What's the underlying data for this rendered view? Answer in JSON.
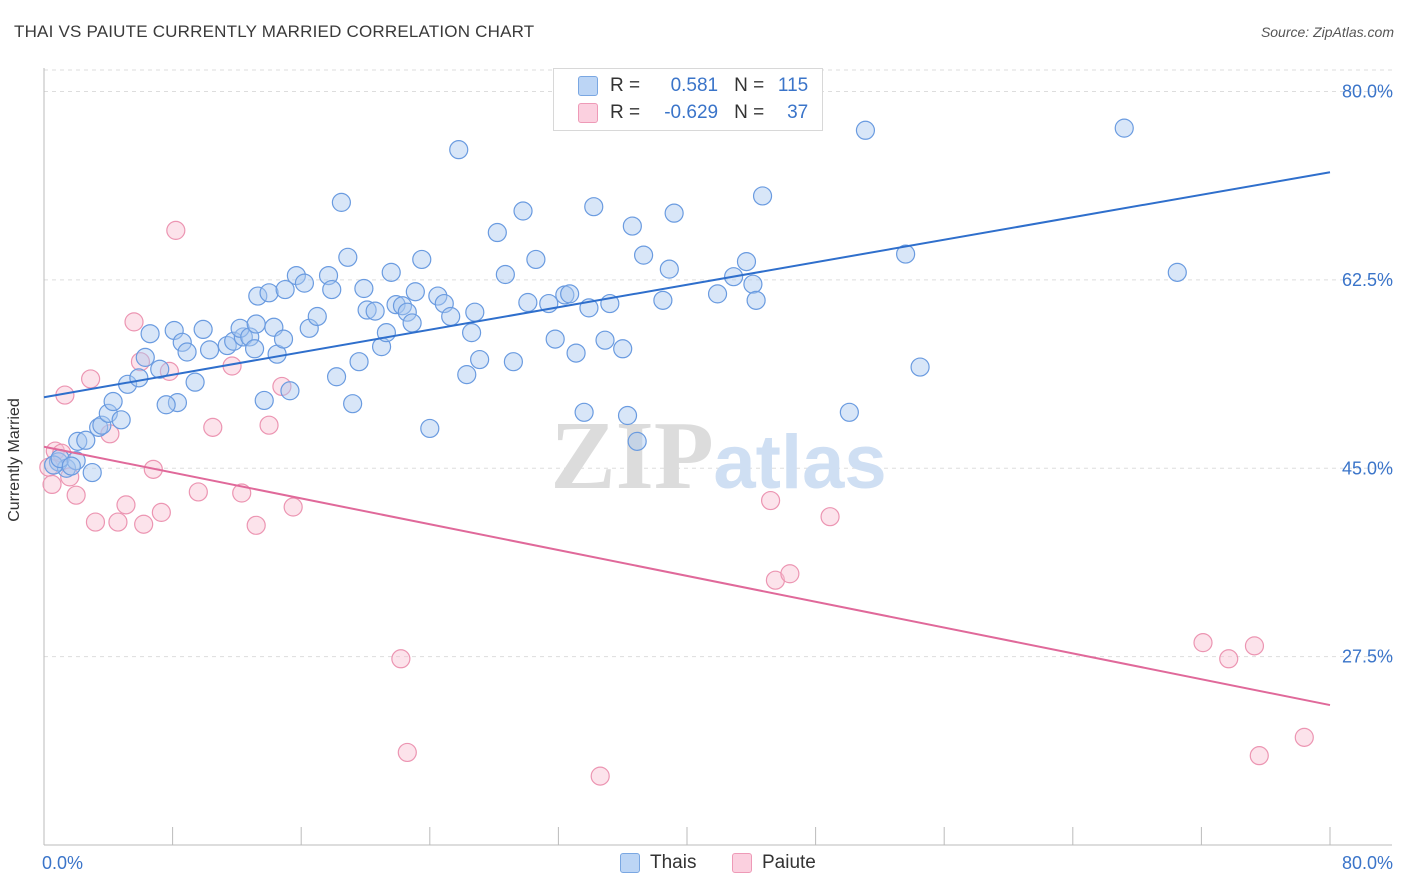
{
  "header": {
    "title": "THAI VS PAIUTE CURRENTLY MARRIED CORRELATION CHART",
    "source": "Source: ZipAtlas.com"
  },
  "legend": {
    "thais": {
      "r_label": "R =",
      "r_value": "0.581",
      "n_label": "N =",
      "n_value": "115"
    },
    "paiute": {
      "r_label": "R =",
      "r_value": "-0.629",
      "n_label": "N =",
      "n_value": "37"
    }
  },
  "bottom_legend": {
    "thais": "Thais",
    "paiute": "Paiute"
  },
  "watermark": {
    "zip": "ZIP",
    "atlas": "atlas"
  },
  "colors": {
    "thais_fill": "#a8c8f0",
    "thais_stroke": "#6a9be0",
    "thais_line": "#2f6fcc",
    "paiute_fill": "#f8c0d2",
    "paiute_stroke": "#ec95b2",
    "paiute_line": "#e0699a",
    "axis_label": "#3a74c9",
    "grid": "#dddddd"
  },
  "chart_data": {
    "type": "scatter",
    "title": "THAI VS PAIUTE CURRENTLY MARRIED CORRELATION CHART",
    "xlabel": "",
    "ylabel": "Currently Married",
    "xlim": [
      0,
      80
    ],
    "ylim": [
      10,
      82
    ],
    "x_tick_labels": [
      {
        "value": 0,
        "label": "0.0%"
      },
      {
        "value": 80,
        "label": "80.0%"
      }
    ],
    "y_tick_labels": [
      {
        "value": 27.5,
        "label": "27.5%"
      },
      {
        "value": 45.0,
        "label": "45.0%"
      },
      {
        "value": 62.5,
        "label": "62.5%"
      },
      {
        "value": 80.0,
        "label": "80.0%"
      }
    ],
    "grid": true,
    "legend_position": "top-center",
    "series": [
      {
        "name": "Thais",
        "trend": [
          [
            0,
            51.6
          ],
          [
            80,
            72.5
          ]
        ],
        "points": [
          [
            0.9,
            45.6
          ],
          [
            1.4,
            45.0
          ],
          [
            0.6,
            45.3
          ],
          [
            1.0,
            45.9
          ],
          [
            2.0,
            45.7
          ],
          [
            1.7,
            45.2
          ],
          [
            3.0,
            44.6
          ],
          [
            2.1,
            47.5
          ],
          [
            2.6,
            47.6
          ],
          [
            3.4,
            48.8
          ],
          [
            3.6,
            49.0
          ],
          [
            4.0,
            50.1
          ],
          [
            4.8,
            49.5
          ],
          [
            4.3,
            51.2
          ],
          [
            5.2,
            52.8
          ],
          [
            5.9,
            53.4
          ],
          [
            7.2,
            54.2
          ],
          [
            8.3,
            51.1
          ],
          [
            7.6,
            50.9
          ],
          [
            9.4,
            53.0
          ],
          [
            6.3,
            55.3
          ],
          [
            6.6,
            57.5
          ],
          [
            8.1,
            57.8
          ],
          [
            8.6,
            56.7
          ],
          [
            8.9,
            55.8
          ],
          [
            9.9,
            57.9
          ],
          [
            10.3,
            56.0
          ],
          [
            11.4,
            56.4
          ],
          [
            11.8,
            56.8
          ],
          [
            12.4,
            57.2
          ],
          [
            12.2,
            58.0
          ],
          [
            12.8,
            57.2
          ],
          [
            13.2,
            58.4
          ],
          [
            13.7,
            51.3
          ],
          [
            14.3,
            58.1
          ],
          [
            14.5,
            55.6
          ],
          [
            14.9,
            57.0
          ],
          [
            13.1,
            56.1
          ],
          [
            13.3,
            61.0
          ],
          [
            14.0,
            61.3
          ],
          [
            15.0,
            61.6
          ],
          [
            15.3,
            52.2
          ],
          [
            15.7,
            62.9
          ],
          [
            16.2,
            62.2
          ],
          [
            16.5,
            58.0
          ],
          [
            17.0,
            59.1
          ],
          [
            17.7,
            62.9
          ],
          [
            17.9,
            61.6
          ],
          [
            18.2,
            53.5
          ],
          [
            18.5,
            69.7
          ],
          [
            18.9,
            64.6
          ],
          [
            19.2,
            51.0
          ],
          [
            19.6,
            54.9
          ],
          [
            19.9,
            61.7
          ],
          [
            20.1,
            59.7
          ],
          [
            20.6,
            59.6
          ],
          [
            21.0,
            56.3
          ],
          [
            21.3,
            57.6
          ],
          [
            21.6,
            63.2
          ],
          [
            21.9,
            60.2
          ],
          [
            22.3,
            60.1
          ],
          [
            22.6,
            59.5
          ],
          [
            22.9,
            58.5
          ],
          [
            23.1,
            61.4
          ],
          [
            23.5,
            64.4
          ],
          [
            24.0,
            48.7
          ],
          [
            24.5,
            61.0
          ],
          [
            24.9,
            60.3
          ],
          [
            25.3,
            59.1
          ],
          [
            25.8,
            74.6
          ],
          [
            26.3,
            53.7
          ],
          [
            26.6,
            57.6
          ],
          [
            26.8,
            59.5
          ],
          [
            27.1,
            55.1
          ],
          [
            28.2,
            66.9
          ],
          [
            28.7,
            63.0
          ],
          [
            29.2,
            54.9
          ],
          [
            29.8,
            68.9
          ],
          [
            30.1,
            60.4
          ],
          [
            30.6,
            64.4
          ],
          [
            31.4,
            60.3
          ],
          [
            31.8,
            57.0
          ],
          [
            32.4,
            61.1
          ],
          [
            32.7,
            61.2
          ],
          [
            33.1,
            55.7
          ],
          [
            33.6,
            50.2
          ],
          [
            33.9,
            59.9
          ],
          [
            34.2,
            69.3
          ],
          [
            34.9,
            56.9
          ],
          [
            35.2,
            60.3
          ],
          [
            36.0,
            56.1
          ],
          [
            36.3,
            49.9
          ],
          [
            36.6,
            67.5
          ],
          [
            36.9,
            47.5
          ],
          [
            37.3,
            64.8
          ],
          [
            38.5,
            60.6
          ],
          [
            38.9,
            63.5
          ],
          [
            39.2,
            68.7
          ],
          [
            41.9,
            61.2
          ],
          [
            42.9,
            62.8
          ],
          [
            43.7,
            64.2
          ],
          [
            44.1,
            62.1
          ],
          [
            44.3,
            60.6
          ],
          [
            44.7,
            70.3
          ],
          [
            50.1,
            50.2
          ],
          [
            51.1,
            76.4
          ],
          [
            53.6,
            64.9
          ],
          [
            54.5,
            54.4
          ],
          [
            67.2,
            76.6
          ],
          [
            70.5,
            63.2
          ]
        ]
      },
      {
        "name": "Paiute",
        "trend": [
          [
            0,
            47.0
          ],
          [
            80,
            23.0
          ]
        ],
        "points": [
          [
            0.3,
            45.1
          ],
          [
            0.5,
            43.5
          ],
          [
            0.7,
            46.6
          ],
          [
            1.1,
            46.4
          ],
          [
            1.6,
            44.2
          ],
          [
            2.0,
            42.5
          ],
          [
            1.3,
            51.8
          ],
          [
            3.2,
            40.0
          ],
          [
            2.9,
            53.3
          ],
          [
            4.1,
            48.2
          ],
          [
            5.1,
            41.6
          ],
          [
            4.6,
            40.0
          ],
          [
            5.6,
            58.6
          ],
          [
            6.0,
            54.9
          ],
          [
            6.2,
            39.8
          ],
          [
            6.8,
            44.9
          ],
          [
            7.3,
            40.9
          ],
          [
            7.8,
            54.0
          ],
          [
            8.2,
            67.1
          ],
          [
            9.6,
            42.8
          ],
          [
            10.5,
            48.8
          ],
          [
            11.7,
            54.5
          ],
          [
            12.3,
            42.7
          ],
          [
            13.2,
            39.7
          ],
          [
            14.0,
            49.0
          ],
          [
            14.8,
            52.6
          ],
          [
            15.5,
            41.4
          ],
          [
            22.2,
            27.3
          ],
          [
            22.6,
            18.6
          ],
          [
            34.6,
            16.4
          ],
          [
            45.2,
            42.0
          ],
          [
            45.5,
            34.6
          ],
          [
            46.4,
            35.2
          ],
          [
            48.9,
            40.5
          ],
          [
            72.1,
            28.8
          ],
          [
            73.7,
            27.3
          ],
          [
            75.3,
            28.5
          ],
          [
            75.6,
            18.3
          ],
          [
            78.4,
            20.0
          ]
        ]
      }
    ]
  }
}
